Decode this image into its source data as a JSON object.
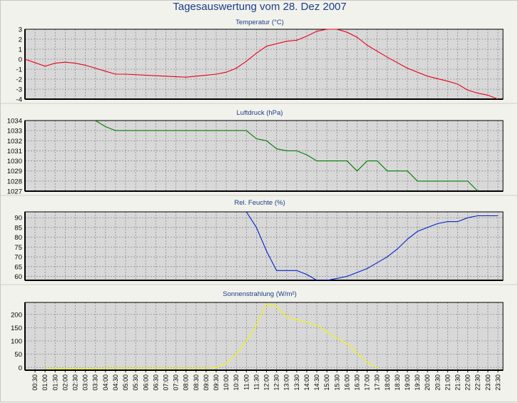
{
  "header": {
    "title": "Tagesauswertung vom 28. Dez 2007"
  },
  "colors": {
    "background": "#f2f2ec",
    "plot_area": "#d8d8d8",
    "grid": "#8c8c8c",
    "temperature": "#e8001c",
    "pressure": "#007a00",
    "humidity": "#0022cc",
    "radiation": "#f5f500",
    "title_text": "#1a3d8a"
  },
  "chart_data": [
    {
      "type": "line",
      "title": "Temperatur (°C)",
      "ylim": [
        -4,
        3
      ],
      "yticks": [
        3,
        2,
        1,
        0,
        -1,
        -2,
        -3,
        -4
      ],
      "grid": true,
      "series": [
        {
          "color": "#e8001c",
          "x": [
            "00:00",
            "01:00",
            "01:30",
            "02:00",
            "02:30",
            "03:00",
            "03:30",
            "04:00",
            "04:30",
            "05:00",
            "06:00",
            "07:00",
            "08:00",
            "09:00",
            "09:30",
            "10:00",
            "10:30",
            "11:00",
            "11:30",
            "12:00",
            "13:00",
            "13:30",
            "14:00",
            "14:30",
            "15:00",
            "15:30",
            "16:00",
            "16:30",
            "17:00",
            "18:00",
            "19:00",
            "20:00",
            "21:00",
            "21:30",
            "22:00",
            "22:30",
            "23:00",
            "23:30"
          ],
          "values": [
            0.0,
            -0.7,
            -0.4,
            -0.3,
            -0.4,
            -0.6,
            -0.9,
            -1.2,
            -1.5,
            -1.5,
            -1.6,
            -1.7,
            -1.8,
            -1.6,
            -1.5,
            -1.3,
            -0.9,
            -0.2,
            0.6,
            1.3,
            1.8,
            1.9,
            2.3,
            2.8,
            3.0,
            3.0,
            2.7,
            2.2,
            1.4,
            0.2,
            -0.9,
            -1.7,
            -2.2,
            -2.5,
            -3.1,
            -3.4,
            -3.6,
            -4.0
          ]
        }
      ]
    },
    {
      "type": "line",
      "title": "Luftdruck (hPa)",
      "ylim": [
        1027,
        1034
      ],
      "yticks": [
        1034,
        1033,
        1032,
        1031,
        1030,
        1029,
        1028,
        1027
      ],
      "grid": true,
      "series": [
        {
          "color": "#007a00",
          "x": [
            "03:30",
            "04:00",
            "04:30",
            "11:00",
            "11:30",
            "12:00",
            "12:30",
            "13:00",
            "13:30",
            "14:00",
            "14:30",
            "15:00",
            "16:00",
            "16:30",
            "17:00",
            "17:30",
            "18:00",
            "19:00",
            "19:30",
            "22:00",
            "22:30"
          ],
          "values": [
            1034,
            1033.4,
            1033,
            1033,
            1032.2,
            1032,
            1031.2,
            1031,
            1031,
            1030.6,
            1030,
            1030,
            1030,
            1029,
            1030,
            1030,
            1029,
            1029,
            1028,
            1028,
            1027
          ]
        }
      ]
    },
    {
      "type": "line",
      "title": "Rel. Feuchte (%)",
      "ylim": [
        58,
        93
      ],
      "yticks": [
        90,
        85,
        80,
        75,
        70,
        65,
        60
      ],
      "grid": true,
      "series": [
        {
          "color": "#0022cc",
          "x": [
            "11:00",
            "11:30",
            "12:00",
            "12:30",
            "13:00",
            "13:30",
            "14:00",
            "14:30",
            "15:00",
            "15:30",
            "16:00",
            "16:30",
            "17:00",
            "17:30",
            "18:00",
            "18:30",
            "19:00",
            "19:30",
            "20:00",
            "20:30",
            "21:00",
            "21:30",
            "22:00",
            "22:30",
            "23:00",
            "23:30"
          ],
          "values": [
            93,
            85,
            73,
            63,
            63,
            63,
            61,
            58,
            58,
            59,
            60,
            62,
            64,
            67,
            70,
            74,
            79,
            83,
            85,
            87,
            88,
            88,
            90,
            91,
            91,
            91
          ]
        }
      ]
    },
    {
      "type": "line",
      "title": "Sonnenstrahlung (W/m²)",
      "ylim": [
        -10,
        245
      ],
      "yticks": [
        200,
        150,
        100,
        50,
        0
      ],
      "xlabels": [
        "00:30",
        "01:00",
        "01:30",
        "02:00",
        "02:30",
        "03:00",
        "03:30",
        "04:00",
        "04:30",
        "05:00",
        "05:30",
        "06:00",
        "06:30",
        "07:00",
        "07:30",
        "08:00",
        "08:30",
        "09:00",
        "09:30",
        "10:00",
        "10:30",
        "11:00",
        "11:30",
        "12:00",
        "12:30",
        "13:00",
        "13:30",
        "14:00",
        "14:30",
        "15:00",
        "15:30",
        "16:00",
        "16:30",
        "17:00",
        "17:30",
        "18:00",
        "18:30",
        "19:00",
        "19:30",
        "20:00",
        "20:30",
        "21:00",
        "21:30",
        "22:00",
        "22:30",
        "23:00",
        "23:30"
      ],
      "grid": true,
      "series": [
        {
          "color": "#f5f500",
          "x": [
            "01:00",
            "01:30",
            "02:00",
            "02:30",
            "03:00",
            "03:30",
            "04:00",
            "04:30",
            "05:00",
            "05:30",
            "06:00",
            "06:30",
            "07:00",
            "07:30",
            "08:00",
            "08:30",
            "09:00",
            "09:30",
            "10:00",
            "10:30",
            "11:00",
            "11:30",
            "12:00",
            "12:30",
            "13:00",
            "13:30",
            "14:00",
            "14:30",
            "15:00",
            "15:30",
            "16:00",
            "16:30",
            "17:00",
            "17:30"
          ],
          "values": [
            -2,
            -3,
            -3,
            -3,
            -3,
            -3,
            -2,
            -2,
            -2,
            -2,
            -2,
            -2,
            -2,
            -2,
            -2,
            -2,
            -2,
            0,
            15,
            50,
            100,
            160,
            240,
            230,
            190,
            180,
            170,
            160,
            135,
            110,
            90,
            55,
            20,
            0
          ]
        }
      ]
    }
  ]
}
